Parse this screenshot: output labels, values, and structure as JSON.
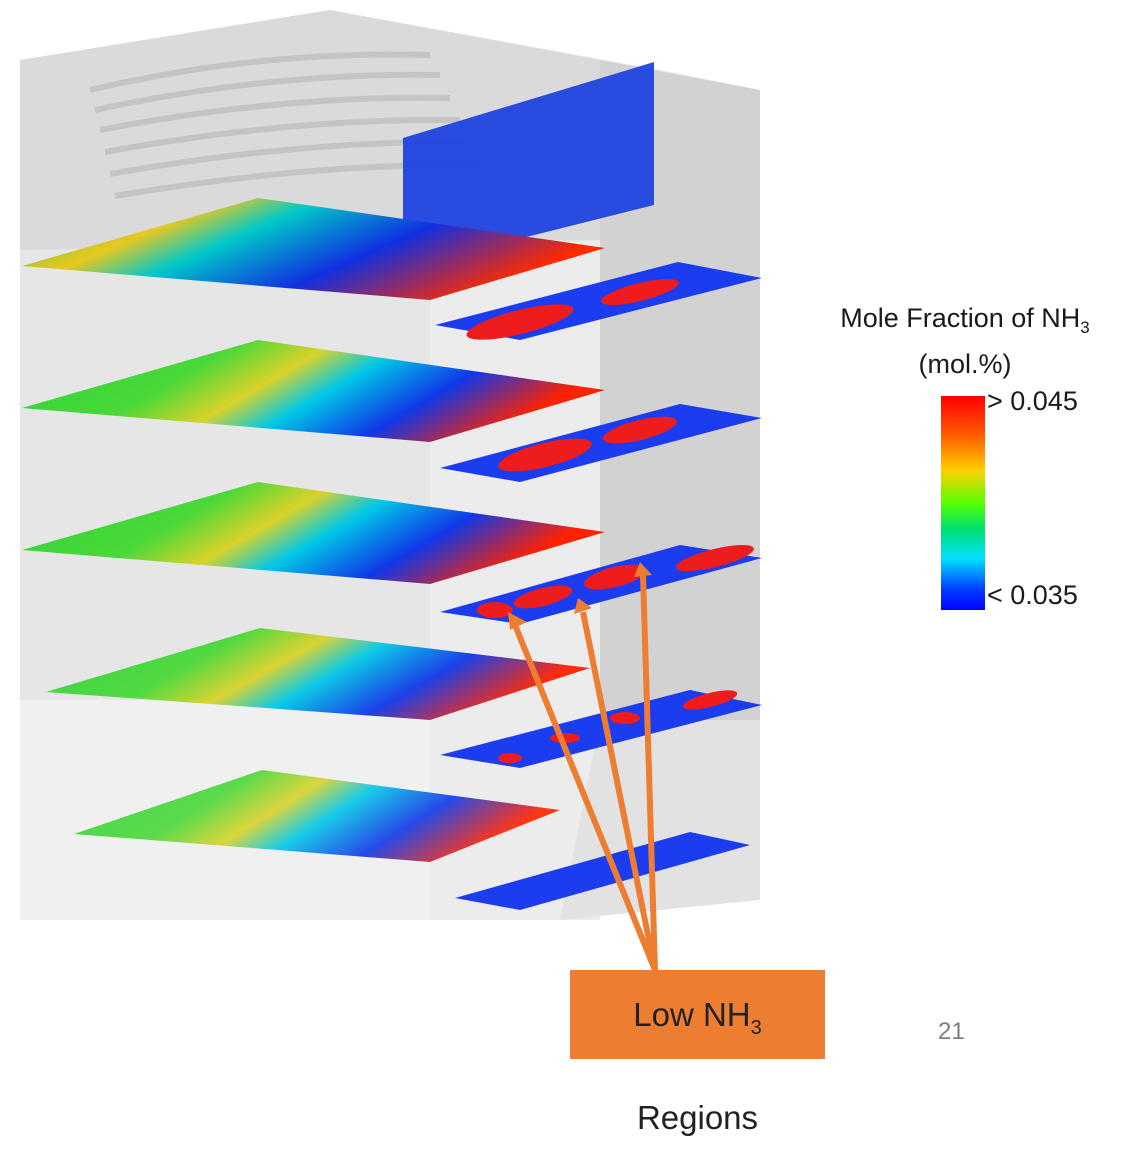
{
  "legend": {
    "title_prefix": "Mole Fraction of NH",
    "title_subscript": "3",
    "unit": "(mol.%)",
    "max_label": "> 0.045",
    "min_label": "< 0.035",
    "colors": {
      "high": "#ff0000",
      "mid": "#55ff00",
      "low": "#0000ff"
    }
  },
  "callout": {
    "text_prefix": "Low NH",
    "text_subscript": "3",
    "text_suffix": " Regions",
    "color": "#ed7d31"
  },
  "page_number": "21"
}
